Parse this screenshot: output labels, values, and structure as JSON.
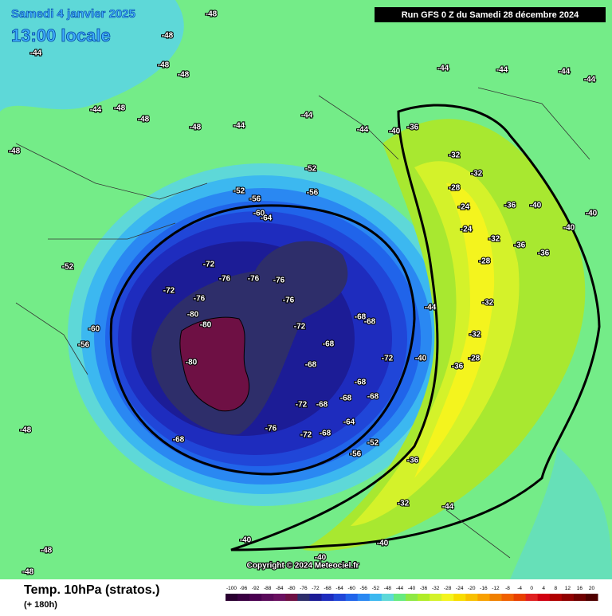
{
  "header": {
    "date": "Samedi 4 janvier 2025",
    "time": "13:00 locale",
    "run": "Run GFS 0 Z du Samedi 28 décembre 2024"
  },
  "map": {
    "copyright": "Copyright © 2024 Meteociel.fr",
    "labels": [
      "-48",
      "-48",
      "-44",
      "-48",
      "-48",
      "-44",
      "-48",
      "-48",
      "-48",
      "-44",
      "-44",
      "-44",
      "-44",
      "-40",
      "-48",
      "-52",
      "-56",
      "-60",
      "-64",
      "-56",
      "-52",
      "-52",
      "-60",
      "-56",
      "-72",
      "-76",
      "-76",
      "-76",
      "-72",
      "-76",
      "-80",
      "-80",
      "-80",
      "-76",
      "-72",
      "-68",
      "-68",
      "-68",
      "-72",
      "-68",
      "-68",
      "-68",
      "-68",
      "-68",
      "-72",
      "-64",
      "-76",
      "-68",
      "-72",
      "-68",
      "-52",
      "-56",
      "-44",
      "-40",
      "-36",
      "-32",
      "-28",
      "-24",
      "-24",
      "-32",
      "-28",
      "-32",
      "-36",
      "-36",
      "-40",
      "-40",
      "-36",
      "-32",
      "-28",
      "-32",
      "-36",
      "-32",
      "-36",
      "-40",
      "-44",
      "-44",
      "-48",
      "-48",
      "-48",
      "-40",
      "-40",
      "-44",
      "-44",
      "-40"
    ]
  },
  "footer": {
    "title": "Temp. 10hPa (stratos.)",
    "subtitle": "(+ 180h)"
  },
  "colorbar": {
    "ticks": [
      -100,
      -96,
      -92,
      -88,
      -84,
      -80,
      -76,
      -72,
      -68,
      -64,
      -60,
      -56,
      -52,
      -48,
      -44,
      -40,
      -36,
      -32,
      -28,
      -24,
      -20,
      -16,
      -12,
      -8,
      -4,
      0,
      4,
      8,
      12,
      16,
      20
    ],
    "colors": [
      "#2a0030",
      "#3a0042",
      "#4a0050",
      "#5a0a5a",
      "#6a1060",
      "#6e1044",
      "#2e2e6a",
      "#1c1c96",
      "#1e2cbe",
      "#2046d8",
      "#2064ea",
      "#2a88f2",
      "#3cb8f0",
      "#5ed8d8",
      "#66ea80",
      "#8ee844",
      "#b0ec28",
      "#d4f22a",
      "#f4f41e",
      "#f8dc00",
      "#f8c000",
      "#f8a000",
      "#f08000",
      "#f06000",
      "#e84000",
      "#e02020",
      "#d00010",
      "#b00000",
      "#900000",
      "#700000",
      "#500000"
    ]
  }
}
